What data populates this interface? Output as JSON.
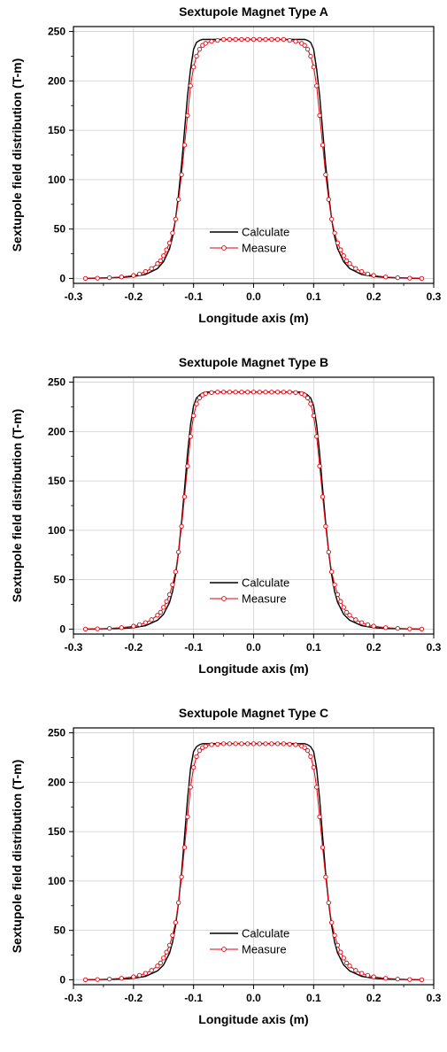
{
  "chart_data": [
    {
      "type": "line",
      "title": "Sextupole Magnet Type A",
      "xlabel": "Longitude axis (m)",
      "ylabel": "Sextupole field distribution (T-m)",
      "xlim": [
        -0.3,
        0.3
      ],
      "ylim": [
        -5,
        255
      ],
      "xticks": [
        "-0.3",
        "-0.2",
        "-0.1",
        "0.0",
        "0.1",
        "0.2",
        "0.3"
      ],
      "yticks": [
        "0",
        "50",
        "100",
        "150",
        "200",
        "250"
      ],
      "grid": true,
      "legend_position": "center",
      "series": [
        {
          "name": "Calculate",
          "color": "#000000",
          "marker": "none",
          "x": [
            -0.28,
            -0.25,
            -0.22,
            -0.2,
            -0.18,
            -0.16,
            -0.15,
            -0.14,
            -0.135,
            -0.13,
            -0.125,
            -0.12,
            -0.115,
            -0.11,
            -0.105,
            -0.1,
            -0.095,
            -0.09,
            -0.085,
            -0.08,
            -0.07,
            -0.05,
            0.0,
            0.05,
            0.07,
            0.08,
            0.085,
            0.09,
            0.095,
            0.1,
            0.105,
            0.11,
            0.115,
            0.12,
            0.125,
            0.13,
            0.135,
            0.14,
            0.15,
            0.16,
            0.18,
            0.2,
            0.22,
            0.25,
            0.28
          ],
          "y": [
            0,
            0.5,
            1,
            2,
            4,
            10,
            17,
            30,
            42,
            60,
            85,
            115,
            150,
            185,
            212,
            232,
            239,
            241,
            242,
            242,
            242,
            242,
            242,
            242,
            242,
            242,
            242,
            241,
            239,
            232,
            212,
            185,
            150,
            115,
            85,
            60,
            42,
            30,
            17,
            10,
            4,
            2,
            1,
            0.5,
            0
          ]
        },
        {
          "name": "Measure",
          "color": "#e8000b",
          "marker": "circle",
          "x": [
            -0.28,
            -0.26,
            -0.24,
            -0.22,
            -0.2,
            -0.19,
            -0.18,
            -0.17,
            -0.16,
            -0.155,
            -0.15,
            -0.145,
            -0.14,
            -0.135,
            -0.13,
            -0.125,
            -0.12,
            -0.115,
            -0.11,
            -0.105,
            -0.1,
            -0.095,
            -0.09,
            -0.085,
            -0.08,
            -0.07,
            -0.06,
            -0.05,
            -0.04,
            -0.03,
            -0.02,
            -0.01,
            0.0,
            0.01,
            0.02,
            0.03,
            0.04,
            0.05,
            0.06,
            0.07,
            0.08,
            0.085,
            0.09,
            0.095,
            0.1,
            0.105,
            0.11,
            0.115,
            0.12,
            0.125,
            0.13,
            0.135,
            0.14,
            0.145,
            0.15,
            0.155,
            0.16,
            0.17,
            0.18,
            0.19,
            0.2,
            0.22,
            0.24,
            0.26,
            0.28
          ],
          "y": [
            0,
            0.3,
            0.7,
            1.5,
            3,
            4.5,
            7,
            10,
            15,
            18,
            23,
            29,
            36,
            46,
            60,
            80,
            105,
            135,
            165,
            195,
            214,
            225,
            232,
            236,
            238,
            240,
            241,
            242,
            242,
            242,
            242,
            242,
            242,
            242,
            242,
            242,
            242,
            242,
            241,
            240,
            238,
            236,
            232,
            225,
            214,
            195,
            165,
            135,
            105,
            80,
            60,
            46,
            36,
            29,
            23,
            18,
            15,
            10,
            7,
            4.5,
            3,
            1.5,
            0.7,
            0.3,
            0
          ]
        }
      ]
    },
    {
      "type": "line",
      "title": "Sextupole Magnet Type B",
      "xlabel": "Longitude axis (m)",
      "ylabel": "Sextupole field distribution (T-m)",
      "xlim": [
        -0.3,
        0.3
      ],
      "ylim": [
        -5,
        255
      ],
      "xticks": [
        "-0.3",
        "-0.2",
        "-0.1",
        "0.0",
        "0.1",
        "0.2",
        "0.3"
      ],
      "yticks": [
        "0",
        "50",
        "100",
        "150",
        "200",
        "250"
      ],
      "grid": true,
      "legend_position": "bottom-center",
      "series": [
        {
          "name": "Calculate",
          "color": "#000000",
          "marker": "none",
          "x": [
            -0.28,
            -0.25,
            -0.22,
            -0.2,
            -0.18,
            -0.16,
            -0.15,
            -0.14,
            -0.135,
            -0.13,
            -0.125,
            -0.12,
            -0.115,
            -0.11,
            -0.105,
            -0.1,
            -0.095,
            -0.09,
            -0.085,
            -0.08,
            -0.07,
            -0.05,
            0.0,
            0.05,
            0.07,
            0.08,
            0.085,
            0.09,
            0.095,
            0.1,
            0.105,
            0.11,
            0.115,
            0.12,
            0.125,
            0.13,
            0.135,
            0.14,
            0.15,
            0.16,
            0.18,
            0.2,
            0.22,
            0.25,
            0.28
          ],
          "y": [
            0,
            0.3,
            0.7,
            1.5,
            3.5,
            9,
            15,
            27,
            38,
            55,
            78,
            108,
            142,
            178,
            207,
            226,
            234,
            237,
            239,
            240,
            240,
            240,
            240,
            240,
            240,
            240,
            239,
            237,
            234,
            226,
            207,
            178,
            142,
            108,
            78,
            55,
            38,
            27,
            15,
            9,
            3.5,
            1.5,
            0.7,
            0.3,
            0
          ]
        },
        {
          "name": "Measure",
          "color": "#e8000b",
          "marker": "circle",
          "x": [
            -0.28,
            -0.26,
            -0.24,
            -0.22,
            -0.2,
            -0.19,
            -0.18,
            -0.17,
            -0.16,
            -0.155,
            -0.15,
            -0.145,
            -0.14,
            -0.135,
            -0.13,
            -0.125,
            -0.12,
            -0.115,
            -0.11,
            -0.105,
            -0.1,
            -0.095,
            -0.09,
            -0.085,
            -0.08,
            -0.07,
            -0.06,
            -0.05,
            -0.04,
            -0.03,
            -0.02,
            -0.01,
            0.0,
            0.01,
            0.02,
            0.03,
            0.04,
            0.05,
            0.06,
            0.07,
            0.08,
            0.085,
            0.09,
            0.095,
            0.1,
            0.105,
            0.11,
            0.115,
            0.12,
            0.125,
            0.13,
            0.135,
            0.14,
            0.145,
            0.15,
            0.155,
            0.16,
            0.17,
            0.18,
            0.19,
            0.2,
            0.22,
            0.24,
            0.26,
            0.28
          ],
          "y": [
            0,
            0.3,
            0.7,
            1.5,
            3,
            4.5,
            6.5,
            9.5,
            14,
            17,
            22,
            28,
            35,
            45,
            58,
            78,
            104,
            134,
            165,
            195,
            216,
            228,
            234,
            237,
            238.5,
            239.5,
            240,
            240,
            240,
            240,
            240,
            240,
            240,
            240,
            240,
            240,
            240,
            240,
            240,
            239.5,
            238.5,
            237,
            234,
            228,
            216,
            195,
            165,
            134,
            104,
            78,
            58,
            45,
            35,
            28,
            22,
            17,
            14,
            9.5,
            6.5,
            4.5,
            3,
            1.5,
            0.7,
            0.3,
            0
          ]
        }
      ]
    },
    {
      "type": "line",
      "title": "Sextupole Magnet Type C",
      "xlabel": "Longitude axis (m)",
      "ylabel": "Sextupole field distribution (T-m)",
      "xlim": [
        -0.3,
        0.3
      ],
      "ylim": [
        -5,
        255
      ],
      "xticks": [
        "-0.3",
        "-0.2",
        "-0.1",
        "0.0",
        "0.1",
        "0.2",
        "0.3"
      ],
      "yticks": [
        "0",
        "50",
        "100",
        "150",
        "200",
        "250"
      ],
      "grid": true,
      "legend_position": "bottom-center",
      "series": [
        {
          "name": "Calculate",
          "color": "#000000",
          "marker": "none",
          "x": [
            -0.28,
            -0.25,
            -0.22,
            -0.2,
            -0.18,
            -0.16,
            -0.15,
            -0.14,
            -0.135,
            -0.13,
            -0.125,
            -0.12,
            -0.115,
            -0.11,
            -0.105,
            -0.1,
            -0.095,
            -0.09,
            -0.085,
            -0.08,
            -0.07,
            -0.05,
            0.0,
            0.05,
            0.07,
            0.08,
            0.085,
            0.09,
            0.095,
            0.1,
            0.105,
            0.11,
            0.115,
            0.12,
            0.125,
            0.13,
            0.135,
            0.14,
            0.15,
            0.16,
            0.18,
            0.2,
            0.22,
            0.25,
            0.28
          ],
          "y": [
            0,
            0.3,
            0.7,
            1.5,
            3.5,
            9,
            15,
            27,
            38,
            55,
            78,
            108,
            145,
            183,
            214,
            231,
            236,
            238,
            239,
            239,
            239,
            239,
            239,
            239,
            239,
            239,
            239,
            238,
            236,
            231,
            214,
            183,
            145,
            108,
            78,
            55,
            38,
            27,
            15,
            9,
            3.5,
            1.5,
            0.7,
            0.3,
            0
          ]
        },
        {
          "name": "Measure",
          "color": "#e8000b",
          "marker": "circle",
          "x": [
            -0.28,
            -0.26,
            -0.24,
            -0.22,
            -0.2,
            -0.19,
            -0.18,
            -0.17,
            -0.16,
            -0.155,
            -0.15,
            -0.145,
            -0.14,
            -0.135,
            -0.13,
            -0.125,
            -0.12,
            -0.115,
            -0.11,
            -0.105,
            -0.1,
            -0.095,
            -0.09,
            -0.085,
            -0.08,
            -0.07,
            -0.06,
            -0.05,
            -0.04,
            -0.03,
            -0.02,
            -0.01,
            0.0,
            0.01,
            0.02,
            0.03,
            0.04,
            0.05,
            0.06,
            0.07,
            0.08,
            0.085,
            0.09,
            0.095,
            0.1,
            0.105,
            0.11,
            0.115,
            0.12,
            0.125,
            0.13,
            0.135,
            0.14,
            0.145,
            0.15,
            0.155,
            0.16,
            0.17,
            0.18,
            0.19,
            0.2,
            0.22,
            0.24,
            0.26,
            0.28
          ],
          "y": [
            0,
            0.3,
            0.7,
            1.5,
            3,
            4.5,
            6.5,
            9.5,
            14,
            17,
            22,
            28,
            35,
            45,
            58,
            78,
            104,
            134,
            165,
            195,
            215,
            226,
            232,
            235,
            236.5,
            238,
            238.5,
            239,
            239,
            239,
            239,
            239,
            239,
            239,
            239,
            239,
            239,
            239,
            238.5,
            238,
            236.5,
            235,
            232,
            226,
            215,
            195,
            165,
            134,
            104,
            78,
            58,
            45,
            35,
            28,
            22,
            17,
            14,
            9.5,
            6.5,
            4.5,
            3,
            1.5,
            0.7,
            0.3,
            0
          ]
        }
      ]
    }
  ]
}
